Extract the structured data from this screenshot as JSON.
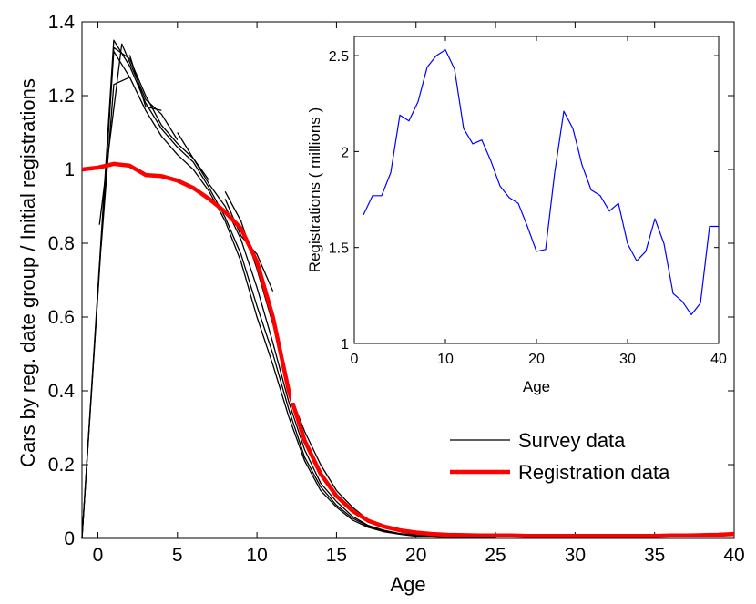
{
  "colors": {
    "survey": "#000000",
    "registration": "#ff0000",
    "inset_line": "#0000ff"
  },
  "chart_data": [
    {
      "type": "line",
      "title": "",
      "xlabel": "Age",
      "ylabel": "Cars by reg. date group / Initial registrations",
      "xlim": [
        -1,
        40
      ],
      "ylim": [
        0,
        1.4
      ],
      "xticks": [
        0,
        5,
        10,
        15,
        20,
        25,
        30,
        35,
        40
      ],
      "yticks": [
        0,
        0.2,
        0.4,
        0.6,
        0.8,
        1,
        1.2,
        1.4
      ],
      "xtick_labels": [
        "0",
        "5",
        "10",
        "15",
        "20",
        "25",
        "30",
        "35",
        "40"
      ],
      "ytick_labels": [
        "0",
        "0.2",
        "0.4",
        "0.6",
        "0.8",
        "1",
        "1.2",
        "1.4"
      ],
      "legend": {
        "position": "center-right",
        "entries": [
          "Survey data",
          "Registration data"
        ]
      },
      "series": [
        {
          "name": "Registration data",
          "x": [
            -1,
            0,
            1,
            2,
            3,
            4,
            5,
            6,
            7,
            8,
            9,
            10,
            11,
            12,
            13,
            14,
            15,
            16,
            17,
            18,
            19,
            20,
            21,
            22,
            23,
            24,
            25,
            26,
            27,
            28,
            29,
            30,
            31,
            32,
            33,
            34,
            35,
            36,
            37,
            38,
            39,
            40
          ],
          "y": [
            1.0,
            1.005,
            1.015,
            1.01,
            0.985,
            0.982,
            0.97,
            0.95,
            0.92,
            0.885,
            0.84,
            0.75,
            0.6,
            0.4,
            0.265,
            0.175,
            0.115,
            0.075,
            0.048,
            0.032,
            0.022,
            0.016,
            0.012,
            0.01,
            0.009,
            0.008,
            0.008,
            0.008,
            0.007,
            0.007,
            0.007,
            0.007,
            0.007,
            0.007,
            0.007,
            0.007,
            0.007,
            0.008,
            0.008,
            0.009,
            0.01,
            0.012
          ]
        },
        {
          "name": "Survey data 1",
          "x": [
            -1,
            1,
            2,
            3,
            4,
            5,
            6,
            7,
            8,
            9,
            10,
            11,
            12,
            13,
            14,
            15,
            16,
            17,
            18,
            19,
            20,
            21,
            22,
            23,
            24,
            25
          ],
          "y": [
            0,
            1.35,
            1.28,
            1.18,
            1.11,
            1.06,
            1.02,
            0.95,
            0.87,
            0.77,
            0.63,
            0.5,
            0.35,
            0.22,
            0.14,
            0.09,
            0.055,
            0.033,
            0.02,
            0.012,
            0.007,
            0.004,
            0.003,
            0.002,
            0.002,
            0.001
          ]
        },
        {
          "name": "Survey data 2",
          "x": [
            -1,
            1,
            2,
            3,
            4,
            5,
            6,
            7,
            8,
            9,
            10,
            11,
            12,
            13,
            14,
            15,
            16,
            17,
            18,
            19,
            20,
            21,
            22,
            23,
            24,
            25
          ],
          "y": [
            0,
            1.33,
            1.3,
            1.2,
            1.12,
            1.07,
            1.03,
            0.96,
            0.9,
            0.81,
            0.68,
            0.53,
            0.37,
            0.24,
            0.15,
            0.1,
            0.06,
            0.035,
            0.022,
            0.013,
            0.008,
            0.005,
            0.003,
            0.002,
            0.002,
            0.001
          ]
        },
        {
          "name": "Survey data 3",
          "x": [
            -1,
            1,
            2,
            3,
            4,
            5,
            6,
            7,
            8,
            9,
            10,
            11,
            12,
            13,
            14,
            15,
            16,
            17,
            18,
            19,
            20,
            21,
            22,
            23,
            24,
            25
          ],
          "y": [
            0,
            1.32,
            1.25,
            1.16,
            1.09,
            1.04,
            1.0,
            0.94,
            0.86,
            0.75,
            0.6,
            0.47,
            0.33,
            0.21,
            0.13,
            0.085,
            0.05,
            0.03,
            0.018,
            0.011,
            0.006,
            0.004,
            0.003,
            0.002,
            0.001,
            0.001
          ]
        },
        {
          "name": "Survey data 4",
          "x": [
            0.2,
            1,
            2
          ],
          "y": [
            0.79,
            1.23,
            1.25
          ]
        },
        {
          "name": "Survey data 5",
          "x": [
            0.1,
            1.5,
            3,
            4,
            5
          ],
          "y": [
            0.85,
            1.34,
            1.19,
            1.15,
            1.08
          ]
        },
        {
          "name": "Survey data 6",
          "x": [
            2,
            3,
            4
          ],
          "y": [
            1.31,
            1.17,
            1.16
          ]
        },
        {
          "name": "Survey data 7",
          "x": [
            5,
            6,
            7
          ],
          "y": [
            1.1,
            1.03,
            0.97
          ]
        },
        {
          "name": "Survey data 8",
          "x": [
            8,
            9,
            10,
            11
          ],
          "y": [
            0.92,
            0.82,
            0.77,
            0.67
          ]
        },
        {
          "name": "Survey data 9",
          "x": [
            8,
            9,
            10,
            11
          ],
          "y": [
            0.94,
            0.86,
            0.73,
            0.58
          ]
        },
        {
          "name": "Survey data 10",
          "x": [
            12,
            13,
            14,
            15,
            16,
            17,
            18,
            19,
            20,
            21,
            22
          ],
          "y": [
            0.4,
            0.29,
            0.2,
            0.13,
            0.085,
            0.05,
            0.03,
            0.018,
            0.01,
            0.006,
            0.003
          ]
        }
      ]
    },
    {
      "type": "line",
      "title": "",
      "xlabel": "Age",
      "ylabel": "Registrations ( millions )",
      "xlim": [
        0,
        40
      ],
      "ylim": [
        1,
        2.6
      ],
      "xticks": [
        0,
        10,
        20,
        30,
        40
      ],
      "yticks": [
        1,
        1.5,
        2,
        2.5
      ],
      "xtick_labels": [
        "0",
        "10",
        "20",
        "30",
        "40"
      ],
      "ytick_labels": [
        "1",
        "1.5",
        "2",
        "2.5"
      ],
      "series": [
        {
          "name": "Registrations",
          "x": [
            1,
            2,
            3,
            4,
            5,
            6,
            7,
            8,
            9,
            10,
            11,
            12,
            13,
            14,
            15,
            16,
            17,
            18,
            19,
            20,
            21,
            22,
            23,
            24,
            25,
            26,
            27,
            28,
            29,
            30,
            31,
            32,
            33,
            34,
            35,
            36,
            37,
            38,
            39,
            40
          ],
          "y": [
            1.67,
            1.77,
            1.77,
            1.89,
            2.19,
            2.16,
            2.26,
            2.44,
            2.5,
            2.53,
            2.43,
            2.12,
            2.04,
            2.06,
            1.95,
            1.82,
            1.76,
            1.73,
            1.61,
            1.48,
            1.49,
            1.89,
            2.21,
            2.12,
            1.93,
            1.8,
            1.77,
            1.69,
            1.73,
            1.52,
            1.43,
            1.48,
            1.65,
            1.52,
            1.26,
            1.22,
            1.15,
            1.21,
            1.61,
            1.61
          ]
        }
      ]
    }
  ]
}
